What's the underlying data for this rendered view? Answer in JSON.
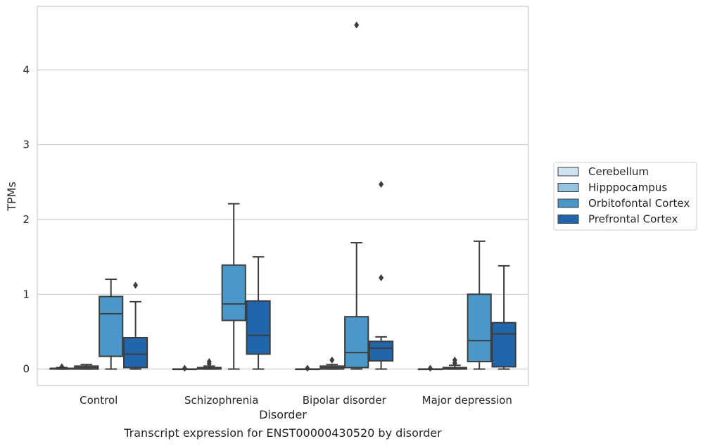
{
  "chart_data": {
    "type": "box",
    "title": "",
    "caption": "Transcript expression for ENST00000430520 by disorder",
    "xlabel": "Disorder",
    "ylabel": "TPMs",
    "ylim": [
      -0.22,
      4.85
    ],
    "yticks": [
      0,
      1,
      2,
      3,
      4
    ],
    "grid": true,
    "legend_position": "right",
    "categories": [
      "Control",
      "Schizophrenia",
      "Bipolar disorder",
      "Major depression"
    ],
    "series": [
      {
        "name": "Cerebellum",
        "color": "#d0e1f2",
        "boxes": [
          {
            "min": 0.0,
            "q1": 0.0,
            "median": 0.005,
            "q3": 0.01,
            "max": 0.02,
            "outliers": [
              0.03
            ]
          },
          {
            "min": 0.0,
            "q1": 0.0,
            "median": 0.0,
            "q3": 0.0,
            "max": 0.0,
            "outliers": [
              0.01
            ]
          },
          {
            "min": 0.0,
            "q1": 0.0,
            "median": 0.0,
            "q3": 0.0,
            "max": 0.0,
            "outliers": [
              0.01
            ]
          },
          {
            "min": 0.0,
            "q1": 0.0,
            "median": 0.0,
            "q3": 0.0,
            "max": 0.0,
            "outliers": [
              0.01
            ]
          }
        ]
      },
      {
        "name": "Hipppocampus",
        "color": "#94c4df",
        "boxes": [
          {
            "min": 0.0,
            "q1": 0.0,
            "median": 0.02,
            "q3": 0.04,
            "max": 0.06,
            "outliers": []
          },
          {
            "min": 0.0,
            "q1": 0.0,
            "median": 0.01,
            "q3": 0.02,
            "max": 0.04,
            "outliers": [
              0.07,
              0.1
            ]
          },
          {
            "min": 0.0,
            "q1": 0.0,
            "median": 0.02,
            "q3": 0.04,
            "max": 0.06,
            "outliers": [
              0.12
            ]
          },
          {
            "min": 0.0,
            "q1": 0.0,
            "median": 0.01,
            "q3": 0.02,
            "max": 0.05,
            "outliers": [
              0.08,
              0.12
            ]
          }
        ]
      },
      {
        "name": "Orbitofontal Cortex",
        "color": "#4a98c9",
        "boxes": [
          {
            "min": 0.0,
            "q1": 0.17,
            "median": 0.74,
            "q3": 0.97,
            "max": 1.2,
            "outliers": []
          },
          {
            "min": 0.0,
            "q1": 0.65,
            "median": 0.87,
            "q3": 1.39,
            "max": 2.21,
            "outliers": []
          },
          {
            "min": 0.0,
            "q1": 0.02,
            "median": 0.22,
            "q3": 0.7,
            "max": 1.69,
            "outliers": [
              4.6
            ]
          },
          {
            "min": 0.0,
            "q1": 0.1,
            "median": 0.38,
            "q3": 1.0,
            "max": 1.71,
            "outliers": []
          }
        ]
      },
      {
        "name": "Prefrontal Cortex",
        "color": "#2165ab",
        "boxes": [
          {
            "min": 0.0,
            "q1": 0.02,
            "median": 0.2,
            "q3": 0.42,
            "max": 0.9,
            "outliers": [
              1.12
            ]
          },
          {
            "min": 0.0,
            "q1": 0.2,
            "median": 0.45,
            "q3": 0.91,
            "max": 1.5,
            "outliers": []
          },
          {
            "min": 0.0,
            "q1": 0.11,
            "median": 0.28,
            "q3": 0.37,
            "max": 0.43,
            "outliers": [
              1.22,
              2.47
            ]
          },
          {
            "min": 0.0,
            "q1": 0.03,
            "median": 0.47,
            "q3": 0.62,
            "max": 1.38,
            "outliers": []
          }
        ]
      }
    ]
  }
}
